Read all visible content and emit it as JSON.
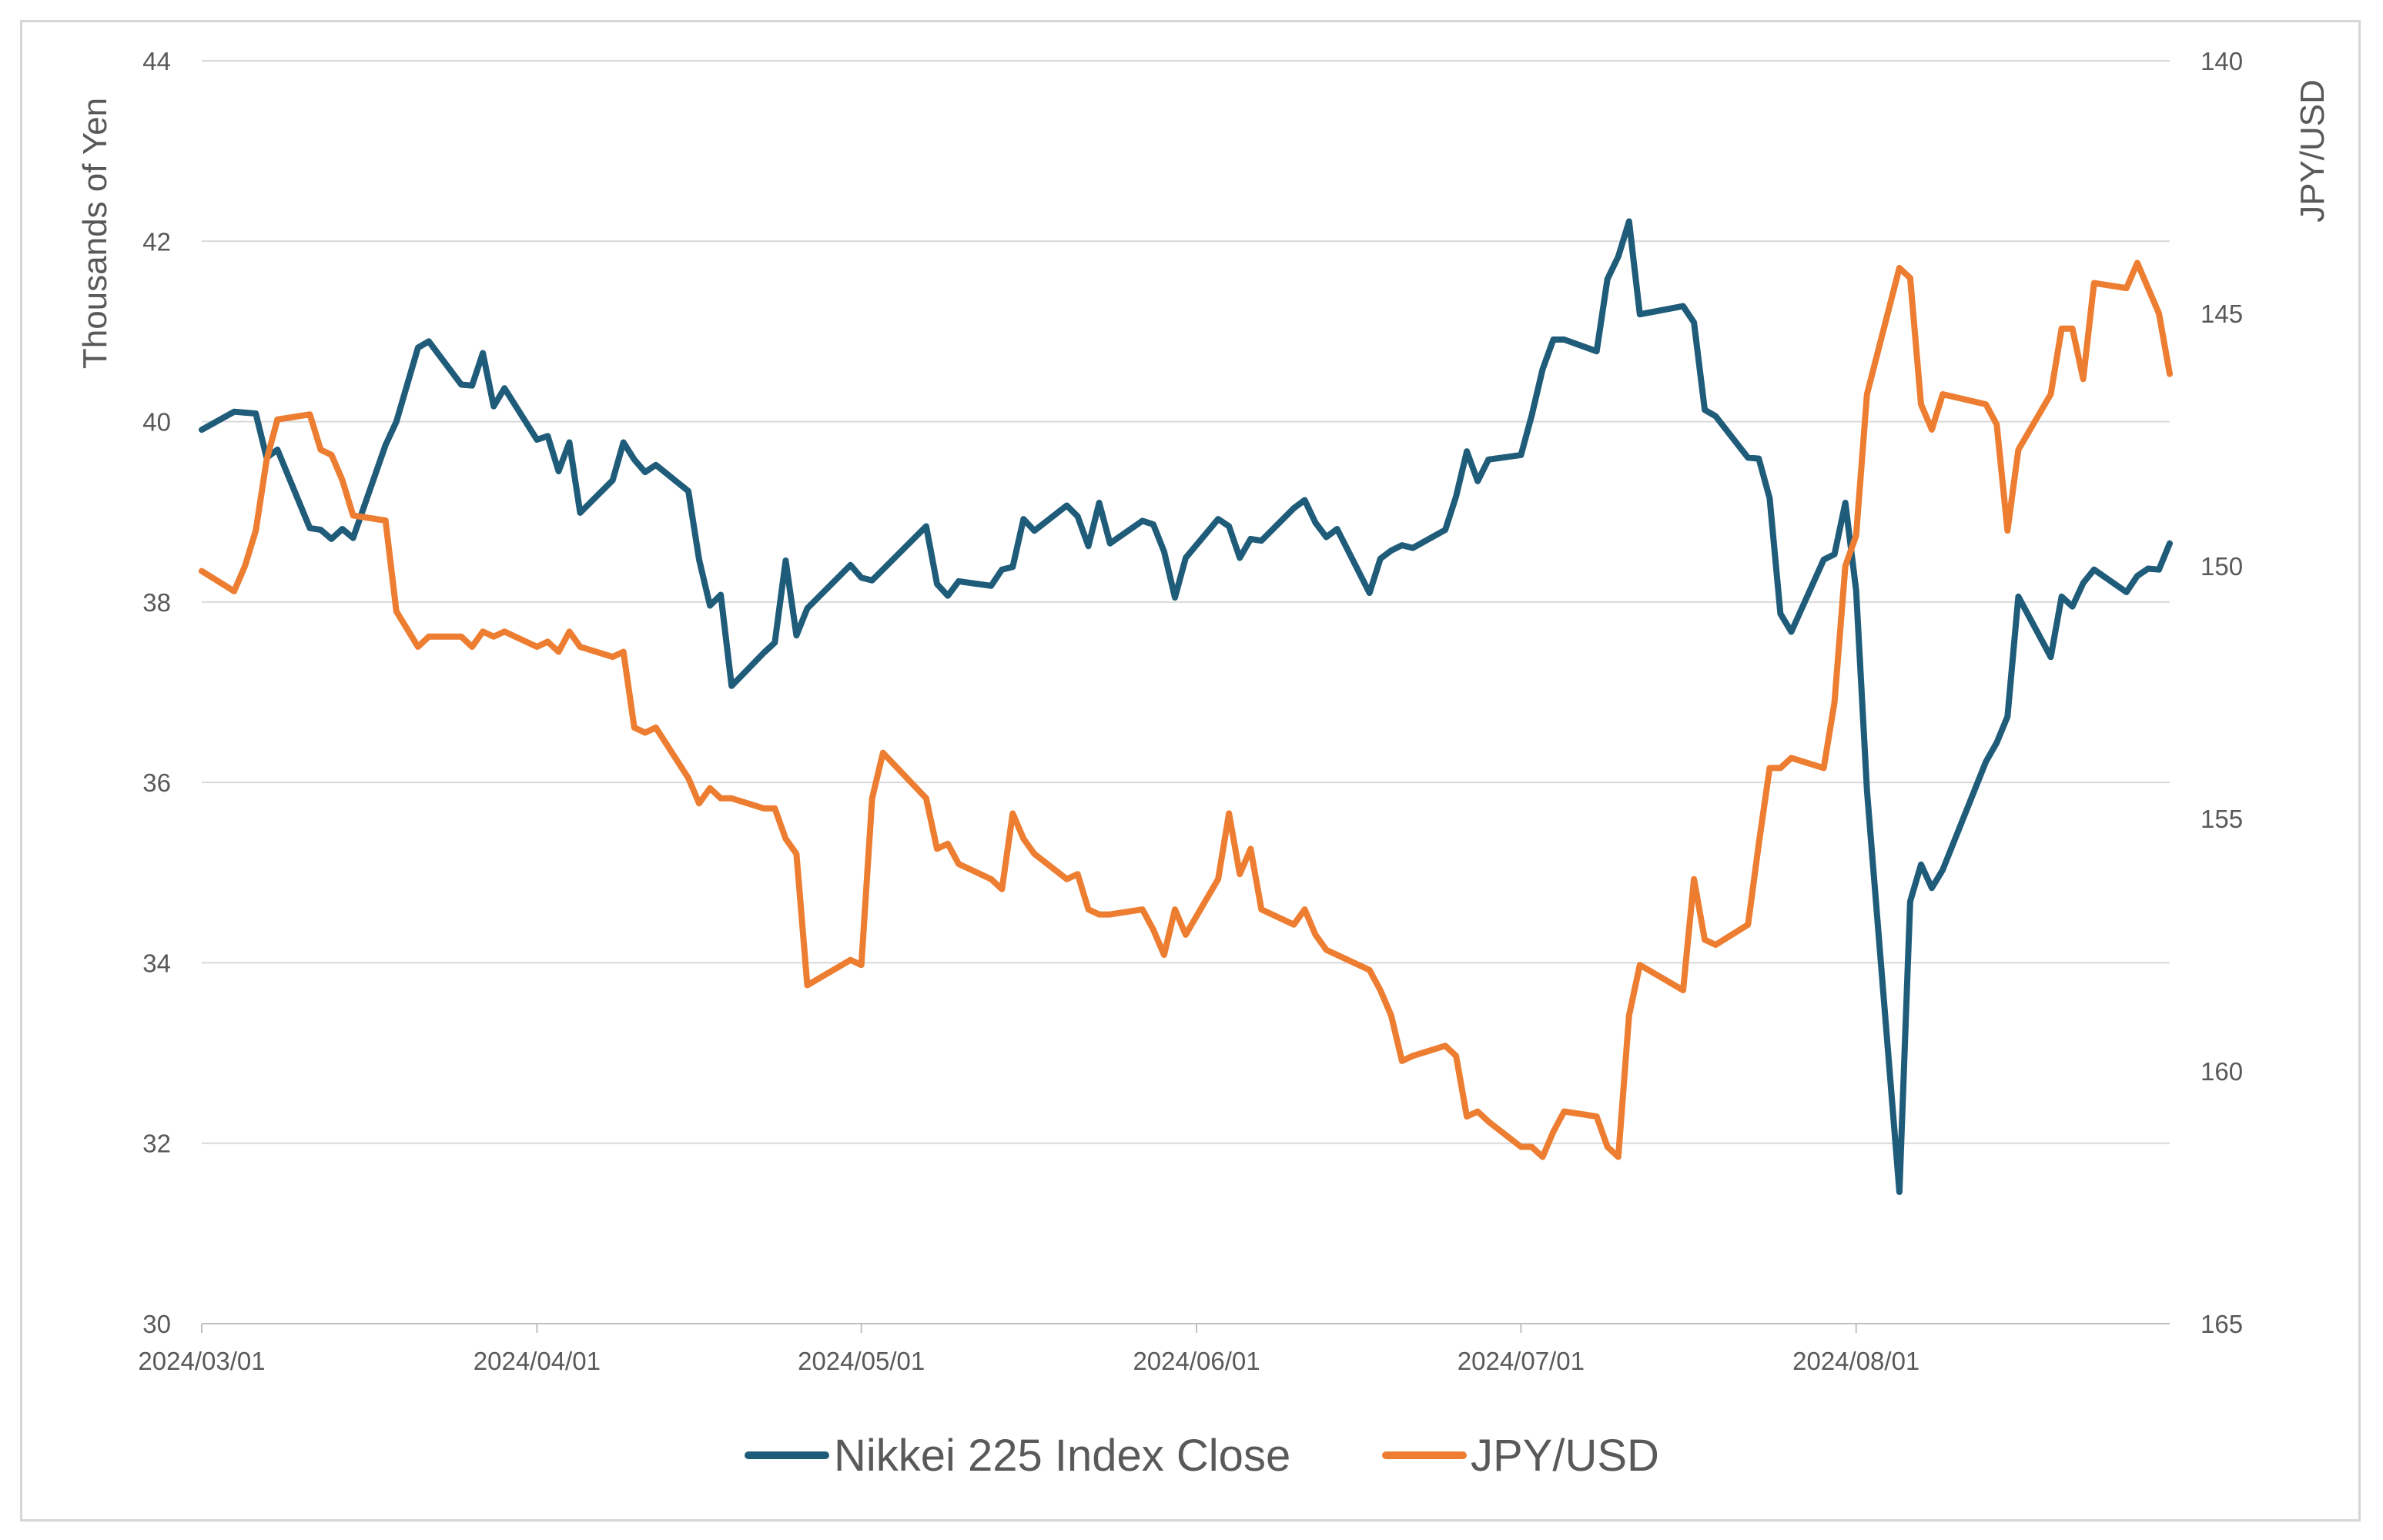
{
  "chart_data": {
    "type": "line",
    "y_left": {
      "label": "Thousands of Yen",
      "ticks": [
        "30",
        "32",
        "34",
        "36",
        "38",
        "40",
        "42",
        "44"
      ],
      "range": [
        30,
        44
      ]
    },
    "y_right": {
      "label": "JPY/USD",
      "ticks": [
        "140",
        "145",
        "150",
        "155",
        "160",
        "165"
      ],
      "range": [
        140,
        165
      ],
      "inverted": true
    },
    "x": {
      "ticks": [
        "2024/03/01",
        "2024/04/01",
        "2024/05/01",
        "2024/06/01",
        "2024/07/01",
        "2024/08/01"
      ],
      "range": [
        "2024-03-01",
        "2024-08-30"
      ]
    },
    "legend": {
      "position": "bottom"
    },
    "grid": true,
    "series": [
      {
        "name": "Nikkei 225 Index Close",
        "axis": "left",
        "color": "#1F5C7A",
        "points": [
          [
            "2024-03-01",
            39.91
          ],
          [
            "2024-03-04",
            40.11
          ],
          [
            "2024-03-05",
            40.1
          ],
          [
            "2024-03-06",
            40.09
          ],
          [
            "2024-03-07",
            39.6
          ],
          [
            "2024-03-08",
            39.69
          ],
          [
            "2024-03-11",
            38.82
          ],
          [
            "2024-03-12",
            38.8
          ],
          [
            "2024-03-13",
            38.7
          ],
          [
            "2024-03-14",
            38.81
          ],
          [
            "2024-03-15",
            38.71
          ],
          [
            "2024-03-18",
            39.74
          ],
          [
            "2024-03-19",
            40.0
          ],
          [
            "2024-03-21",
            40.82
          ],
          [
            "2024-03-22",
            40.89
          ],
          [
            "2024-03-25",
            40.41
          ],
          [
            "2024-03-26",
            40.4
          ],
          [
            "2024-03-27",
            40.76
          ],
          [
            "2024-03-28",
            40.17
          ],
          [
            "2024-03-29",
            40.37
          ],
          [
            "2024-04-01",
            39.8
          ],
          [
            "2024-04-02",
            39.84
          ],
          [
            "2024-04-03",
            39.45
          ],
          [
            "2024-04-04",
            39.77
          ],
          [
            "2024-04-05",
            38.99
          ],
          [
            "2024-04-08",
            39.35
          ],
          [
            "2024-04-09",
            39.77
          ],
          [
            "2024-04-10",
            39.58
          ],
          [
            "2024-04-11",
            39.44
          ],
          [
            "2024-04-12",
            39.52
          ],
          [
            "2024-04-15",
            39.23
          ],
          [
            "2024-04-16",
            38.47
          ],
          [
            "2024-04-17",
            37.96
          ],
          [
            "2024-04-18",
            38.08
          ],
          [
            "2024-04-19",
            37.07
          ],
          [
            "2024-04-22",
            37.44
          ],
          [
            "2024-04-23",
            37.55
          ],
          [
            "2024-04-24",
            38.46
          ],
          [
            "2024-04-25",
            37.63
          ],
          [
            "2024-04-26",
            37.93
          ],
          [
            "2024-04-30",
            38.41
          ],
          [
            "2024-05-01",
            38.27
          ],
          [
            "2024-05-02",
            38.24
          ],
          [
            "2024-05-07",
            38.84
          ],
          [
            "2024-05-08",
            38.2
          ],
          [
            "2024-05-09",
            38.07
          ],
          [
            "2024-05-10",
            38.23
          ],
          [
            "2024-05-13",
            38.18
          ],
          [
            "2024-05-14",
            38.36
          ],
          [
            "2024-05-15",
            38.39
          ],
          [
            "2024-05-16",
            38.92
          ],
          [
            "2024-05-17",
            38.79
          ],
          [
            "2024-05-20",
            39.07
          ],
          [
            "2024-05-21",
            38.95
          ],
          [
            "2024-05-22",
            38.62
          ],
          [
            "2024-05-23",
            39.1
          ],
          [
            "2024-05-24",
            38.65
          ],
          [
            "2024-05-27",
            38.9
          ],
          [
            "2024-05-28",
            38.86
          ],
          [
            "2024-05-29",
            38.56
          ],
          [
            "2024-05-30",
            38.05
          ],
          [
            "2024-05-31",
            38.49
          ],
          [
            "2024-06-03",
            38.92
          ],
          [
            "2024-06-04",
            38.84
          ],
          [
            "2024-06-05",
            38.49
          ],
          [
            "2024-06-06",
            38.7
          ],
          [
            "2024-06-07",
            38.68
          ],
          [
            "2024-06-10",
            39.04
          ],
          [
            "2024-06-11",
            39.13
          ],
          [
            "2024-06-12",
            38.88
          ],
          [
            "2024-06-13",
            38.72
          ],
          [
            "2024-06-14",
            38.81
          ],
          [
            "2024-06-17",
            38.1
          ],
          [
            "2024-06-18",
            38.48
          ],
          [
            "2024-06-19",
            38.57
          ],
          [
            "2024-06-20",
            38.63
          ],
          [
            "2024-06-21",
            38.6
          ],
          [
            "2024-06-24",
            38.8
          ],
          [
            "2024-06-25",
            39.17
          ],
          [
            "2024-06-26",
            39.67
          ],
          [
            "2024-06-27",
            39.34
          ],
          [
            "2024-06-28",
            39.58
          ],
          [
            "2024-07-01",
            39.63
          ],
          [
            "2024-07-02",
            40.07
          ],
          [
            "2024-07-03",
            40.58
          ],
          [
            "2024-07-04",
            40.91
          ],
          [
            "2024-07-05",
            40.91
          ],
          [
            "2024-07-08",
            40.78
          ],
          [
            "2024-07-09",
            41.58
          ],
          [
            "2024-07-10",
            41.83
          ],
          [
            "2024-07-11",
            42.22
          ],
          [
            "2024-07-12",
            41.19
          ],
          [
            "2024-07-16",
            41.28
          ],
          [
            "2024-07-17",
            41.1
          ],
          [
            "2024-07-18",
            40.13
          ],
          [
            "2024-07-19",
            40.06
          ],
          [
            "2024-07-22",
            39.6
          ],
          [
            "2024-07-23",
            39.59
          ],
          [
            "2024-07-24",
            39.15
          ],
          [
            "2024-07-25",
            37.87
          ],
          [
            "2024-07-26",
            37.67
          ],
          [
            "2024-07-29",
            38.47
          ],
          [
            "2024-07-30",
            38.53
          ],
          [
            "2024-07-31",
            39.1
          ],
          [
            "2024-08-01",
            38.13
          ],
          [
            "2024-08-02",
            35.91
          ],
          [
            "2024-08-05",
            31.46
          ],
          [
            "2024-08-06",
            34.68
          ],
          [
            "2024-08-07",
            35.09
          ],
          [
            "2024-08-08",
            34.83
          ],
          [
            "2024-08-09",
            35.03
          ],
          [
            "2024-08-13",
            36.23
          ],
          [
            "2024-08-14",
            36.44
          ],
          [
            "2024-08-15",
            36.73
          ],
          [
            "2024-08-16",
            38.06
          ],
          [
            "2024-08-19",
            37.39
          ],
          [
            "2024-08-20",
            38.06
          ],
          [
            "2024-08-21",
            37.95
          ],
          [
            "2024-08-22",
            38.21
          ],
          [
            "2024-08-23",
            38.36
          ],
          [
            "2024-08-26",
            38.11
          ],
          [
            "2024-08-27",
            38.29
          ],
          [
            "2024-08-28",
            38.37
          ],
          [
            "2024-08-29",
            38.36
          ],
          [
            "2024-08-30",
            38.65
          ]
        ]
      },
      {
        "name": "JPY/USD",
        "axis": "right",
        "color": "#ED7D31",
        "points": [
          [
            "2024-03-01",
            150.1
          ],
          [
            "2024-03-04",
            150.5
          ],
          [
            "2024-03-05",
            150.0
          ],
          [
            "2024-03-06",
            149.3
          ],
          [
            "2024-03-07",
            147.9
          ],
          [
            "2024-03-08",
            147.1
          ],
          [
            "2024-03-11",
            147.0
          ],
          [
            "2024-03-12",
            147.7
          ],
          [
            "2024-03-13",
            147.8
          ],
          [
            "2024-03-14",
            148.3
          ],
          [
            "2024-03-15",
            149.0
          ],
          [
            "2024-03-18",
            149.1
          ],
          [
            "2024-03-19",
            150.9
          ],
          [
            "2024-03-21",
            151.6
          ],
          [
            "2024-03-22",
            151.4
          ],
          [
            "2024-03-25",
            151.4
          ],
          [
            "2024-03-26",
            151.6
          ],
          [
            "2024-03-27",
            151.3
          ],
          [
            "2024-03-28",
            151.4
          ],
          [
            "2024-03-29",
            151.3
          ],
          [
            "2024-04-01",
            151.6
          ],
          [
            "2024-04-02",
            151.5
          ],
          [
            "2024-04-03",
            151.7
          ],
          [
            "2024-04-04",
            151.3
          ],
          [
            "2024-04-05",
            151.6
          ],
          [
            "2024-04-08",
            151.8
          ],
          [
            "2024-04-09",
            151.7
          ],
          [
            "2024-04-10",
            153.2
          ],
          [
            "2024-04-11",
            153.3
          ],
          [
            "2024-04-12",
            153.2
          ],
          [
            "2024-04-15",
            154.2
          ],
          [
            "2024-04-16",
            154.7
          ],
          [
            "2024-04-17",
            154.4
          ],
          [
            "2024-04-18",
            154.6
          ],
          [
            "2024-04-19",
            154.6
          ],
          [
            "2024-04-22",
            154.8
          ],
          [
            "2024-04-23",
            154.8
          ],
          [
            "2024-04-24",
            155.4
          ],
          [
            "2024-04-25",
            155.7
          ],
          [
            "2024-04-26",
            158.3
          ],
          [
            "2024-04-30",
            157.8
          ],
          [
            "2024-05-01",
            157.9
          ],
          [
            "2024-05-02",
            154.6
          ],
          [
            "2024-05-03",
            153.7
          ],
          [
            "2024-05-07",
            154.6
          ],
          [
            "2024-05-08",
            155.6
          ],
          [
            "2024-05-09",
            155.5
          ],
          [
            "2024-05-10",
            155.9
          ],
          [
            "2024-05-13",
            156.2
          ],
          [
            "2024-05-14",
            156.4
          ],
          [
            "2024-05-15",
            154.9
          ],
          [
            "2024-05-16",
            155.4
          ],
          [
            "2024-05-17",
            155.7
          ],
          [
            "2024-05-20",
            156.2
          ],
          [
            "2024-05-21",
            156.1
          ],
          [
            "2024-05-22",
            156.8
          ],
          [
            "2024-05-23",
            156.9
          ],
          [
            "2024-05-24",
            156.9
          ],
          [
            "2024-05-27",
            156.8
          ],
          [
            "2024-05-28",
            157.2
          ],
          [
            "2024-05-29",
            157.7
          ],
          [
            "2024-05-30",
            156.8
          ],
          [
            "2024-05-31",
            157.3
          ],
          [
            "2024-06-03",
            156.2
          ],
          [
            "2024-06-04",
            154.9
          ],
          [
            "2024-06-05",
            156.1
          ],
          [
            "2024-06-06",
            155.6
          ],
          [
            "2024-06-07",
            156.8
          ],
          [
            "2024-06-10",
            157.1
          ],
          [
            "2024-06-11",
            156.8
          ],
          [
            "2024-06-12",
            157.3
          ],
          [
            "2024-06-13",
            157.6
          ],
          [
            "2024-06-14",
            157.7
          ],
          [
            "2024-06-17",
            158.0
          ],
          [
            "2024-06-18",
            158.4
          ],
          [
            "2024-06-19",
            158.9
          ],
          [
            "2024-06-20",
            159.8
          ],
          [
            "2024-06-21",
            159.7
          ],
          [
            "2024-06-24",
            159.5
          ],
          [
            "2024-06-25",
            159.7
          ],
          [
            "2024-06-26",
            160.9
          ],
          [
            "2024-06-27",
            160.8
          ],
          [
            "2024-06-28",
            161.0
          ],
          [
            "2024-07-01",
            161.5
          ],
          [
            "2024-07-02",
            161.5
          ],
          [
            "2024-07-03",
            161.7
          ],
          [
            "2024-07-04",
            161.2
          ],
          [
            "2024-07-05",
            160.8
          ],
          [
            "2024-07-08",
            160.9
          ],
          [
            "2024-07-09",
            161.5
          ],
          [
            "2024-07-10",
            161.7
          ],
          [
            "2024-07-11",
            158.9
          ],
          [
            "2024-07-12",
            157.9
          ],
          [
            "2024-07-16",
            158.4
          ],
          [
            "2024-07-17",
            156.2
          ],
          [
            "2024-07-18",
            157.4
          ],
          [
            "2024-07-19",
            157.5
          ],
          [
            "2024-07-22",
            157.1
          ],
          [
            "2024-07-23",
            155.5
          ],
          [
            "2024-07-24",
            154.0
          ],
          [
            "2024-07-25",
            154.0
          ],
          [
            "2024-07-26",
            153.8
          ],
          [
            "2024-07-29",
            154.0
          ],
          [
            "2024-07-30",
            152.7
          ],
          [
            "2024-07-31",
            150.0
          ],
          [
            "2024-08-01",
            149.4
          ],
          [
            "2024-08-02",
            146.6
          ],
          [
            "2024-08-05",
            144.1
          ],
          [
            "2024-08-06",
            144.3
          ],
          [
            "2024-08-07",
            146.8
          ],
          [
            "2024-08-08",
            147.3
          ],
          [
            "2024-08-09",
            146.6
          ],
          [
            "2024-08-13",
            146.8
          ],
          [
            "2024-08-14",
            147.2
          ],
          [
            "2024-08-15",
            149.3
          ],
          [
            "2024-08-16",
            147.7
          ],
          [
            "2024-08-19",
            146.6
          ],
          [
            "2024-08-20",
            145.3
          ],
          [
            "2024-08-21",
            145.3
          ],
          [
            "2024-08-22",
            146.3
          ],
          [
            "2024-08-23",
            144.4
          ],
          [
            "2024-08-26",
            144.5
          ],
          [
            "2024-08-27",
            144.0
          ],
          [
            "2024-08-28",
            144.5
          ],
          [
            "2024-08-29",
            145.0
          ],
          [
            "2024-08-30",
            146.2
          ]
        ]
      }
    ]
  }
}
